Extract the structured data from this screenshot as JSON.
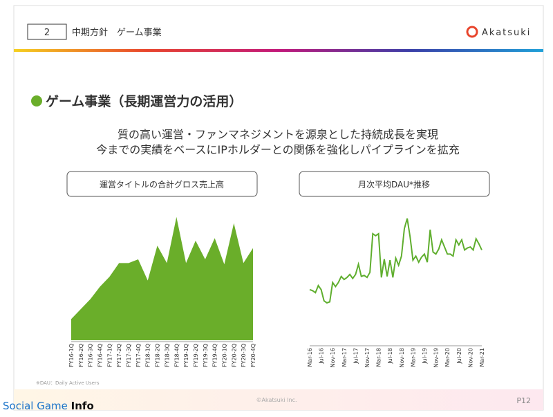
{
  "header": {
    "page_number": "2",
    "title": "中期方針　ゲーム事業",
    "logo": "Akatsuki"
  },
  "heading": "ゲーム事業（長期運営力の活用）",
  "lead": [
    "質の高い運営・ファンマネジメントを源泉とした持続成長を実現",
    "今までの実績をベースにIPホルダーとの関係を強化しパイプラインを拡充"
  ],
  "footnote": "※DAU：Daily Active Users",
  "footer": {
    "copyright": "©Akatsuki Inc.",
    "page": "P12"
  },
  "watermark": {
    "light": "Social Game ",
    "bold": "Info"
  },
  "chart_data": [
    {
      "type": "area",
      "title": "運営タイトルの合計グロス売上高",
      "color": "#6aae2a",
      "ylim": [
        0,
        100
      ],
      "categories": [
        "FY16-1Q",
        "FY16-2Q",
        "FY16-3Q",
        "FY16-4Q",
        "FY17-1Q",
        "FY17-2Q",
        "FY17-3Q",
        "FY17-4Q",
        "FY18-1Q",
        "FY18-2Q",
        "FY18-3Q",
        "FY18-4Q",
        "FY19-1Q",
        "FY19-2Q",
        "FY19-3Q",
        "FY19-4Q",
        "FY20-1Q",
        "FY20-2Q",
        "FY20-3Q",
        "FY20-4Q"
      ],
      "values": [
        17,
        25,
        33,
        43,
        51,
        62,
        62,
        65,
        48,
        76,
        62,
        99,
        62,
        80,
        65,
        82,
        61,
        94,
        62,
        74
      ]
    },
    {
      "type": "line",
      "title": "月次平均DAU*推移",
      "color": "#5fae2e",
      "ylim": [
        0,
        100
      ],
      "categories": [
        "Mar-16",
        null,
        null,
        null,
        "Jul-16",
        null,
        null,
        null,
        "Nov-16",
        null,
        null,
        null,
        "Mar-17",
        null,
        null,
        null,
        "Jul-17",
        null,
        null,
        null,
        "Nov-17",
        null,
        null,
        null,
        "Mar-18",
        null,
        null,
        null,
        "Jul-18",
        null,
        null,
        null,
        "Nov-18",
        null,
        null,
        null,
        "Mar-19",
        null,
        null,
        null,
        "Jul-19",
        null,
        null,
        null,
        "Nov-19",
        null,
        null,
        null,
        "Mar-20",
        null,
        null,
        null,
        "Jul-20",
        null,
        null,
        null,
        "Nov-20",
        null,
        null,
        null,
        "Mar-21"
      ],
      "values": [
        28,
        27,
        25,
        32,
        28,
        17,
        15,
        16,
        35,
        31,
        35,
        41,
        38,
        40,
        43,
        39,
        43,
        53,
        41,
        42,
        40,
        45,
        83,
        81,
        83,
        40,
        58,
        41,
        57,
        40,
        59,
        52,
        61,
        88,
        98,
        80,
        57,
        61,
        55,
        60,
        63,
        55,
        87,
        65,
        63,
        68,
        77,
        70,
        63,
        63,
        61,
        77,
        72,
        77,
        67,
        69,
        70,
        67,
        78,
        73,
        67
      ]
    }
  ]
}
